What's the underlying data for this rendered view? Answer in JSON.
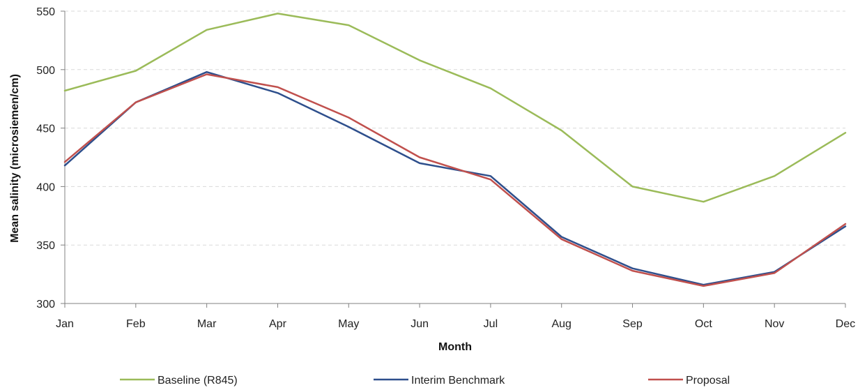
{
  "chart_data": {
    "type": "line",
    "categories": [
      "Jan",
      "Feb",
      "Mar",
      "Apr",
      "May",
      "Jun",
      "Jul",
      "Aug",
      "Sep",
      "Oct",
      "Nov",
      "Dec"
    ],
    "series": [
      {
        "name": "Baseline (R845)",
        "color": "#9BBB59",
        "values": [
          482,
          499,
          534,
          548,
          538,
          508,
          484,
          448,
          400,
          387,
          409,
          446
        ]
      },
      {
        "name": "Interim Benchmark",
        "color": "#2E4F8C",
        "values": [
          418,
          472,
          498,
          480,
          451,
          420,
          409,
          357,
          330,
          316,
          327,
          366
        ]
      },
      {
        "name": "Proposal",
        "color": "#C0504D",
        "values": [
          421,
          472,
          496,
          485,
          459,
          425,
          406,
          355,
          328,
          315,
          326,
          368
        ]
      }
    ],
    "title": "",
    "xlabel": "Month",
    "ylabel": "Mean salinity (microsiemen/cm)",
    "ylim": [
      300,
      550
    ],
    "yticks": [
      300,
      350,
      400,
      450,
      500,
      550
    ],
    "grid": "horizontal dashed",
    "legend": "bottom"
  }
}
